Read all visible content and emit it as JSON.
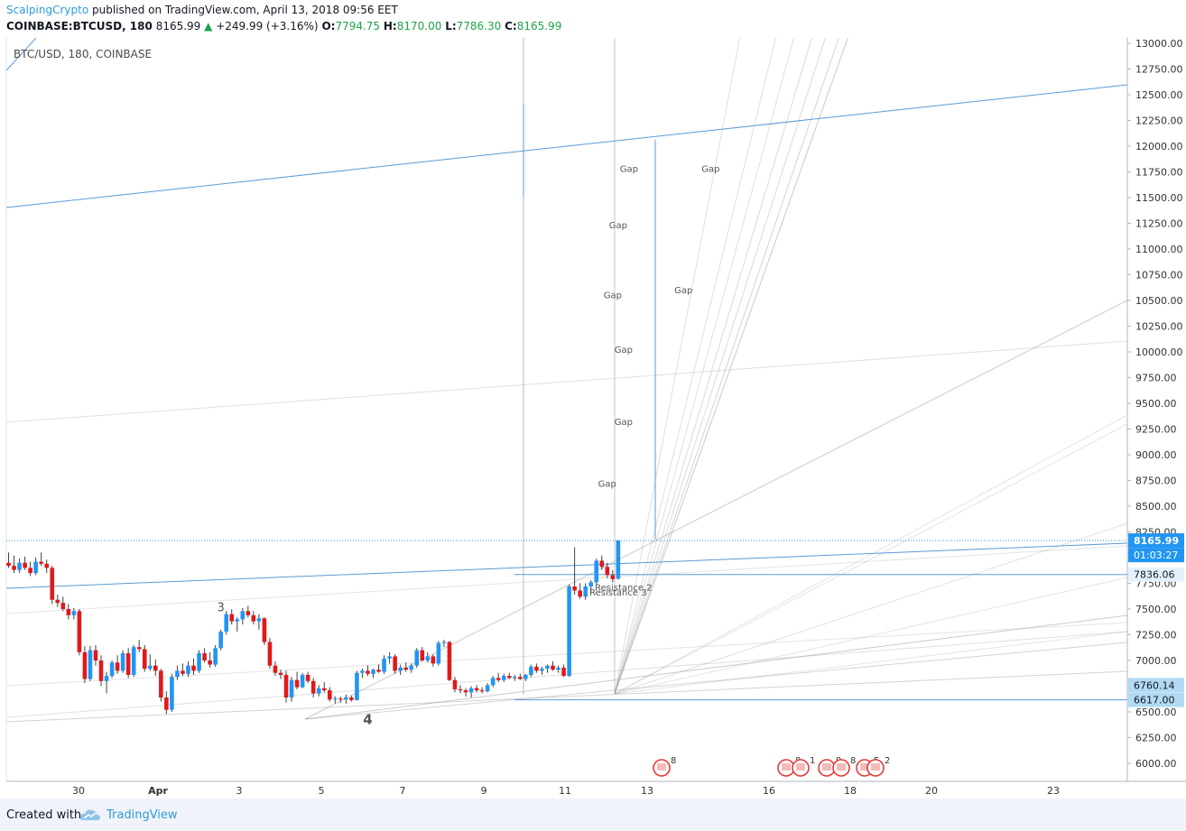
{
  "header": {
    "author": "ScalpingCrypto",
    "published_text": "published on TradingView.com, April 13, 2018 09:56 EET",
    "symbol": "COINBASE:BTCUSD, 180",
    "last": "8165.99",
    "change": "+249.99 (+3.16%)",
    "o_label": "O:",
    "o_value": "7794.75",
    "h_label": "H:",
    "h_value": "8170.00",
    "l_label": "L:",
    "l_value": "7786.30",
    "c_label": "C:",
    "c_value": "8165.99",
    "up_icon": "triangle-up-icon"
  },
  "footer": {
    "created_with": "Created with",
    "brand": "TradingView",
    "logo_icon": "tradingview-cloud-icon"
  },
  "colors": {
    "up": "#2196f3",
    "down": "#e0191b",
    "trendline_blue": "#5b9bd5",
    "fan_gray": "#9e9e9e",
    "last_price_bg": "#2196f3",
    "level_bg": "#b2dbf3"
  },
  "chart_data": {
    "type": "candlestick",
    "title": "BTC/USD, 180, COINBASE",
    "ylim": [
      5880,
      13000
    ],
    "y_ticks": [
      "6000.00",
      "6250.00",
      "6500.00",
      "6750.00",
      "7000.00",
      "7250.00",
      "7500.00",
      "7750.00",
      "8000.00",
      "8250.00",
      "8500.00",
      "8750.00",
      "9000.00",
      "9250.00",
      "9500.00",
      "9750.00",
      "10000.00",
      "10250.00",
      "10500.00",
      "10750.00",
      "11000.00",
      "11250.00",
      "11500.00",
      "11750.00",
      "12000.00",
      "12250.00",
      "12500.00",
      "12750.00",
      "13000.00"
    ],
    "x_ticks": [
      "30",
      "Apr",
      "3",
      "5",
      "7",
      "9",
      "11",
      "13",
      "16",
      "18",
      "20",
      "23"
    ],
    "price_labels": [
      {
        "text": "8165.99",
        "value": 8165.99,
        "kind": "last"
      },
      {
        "text": "01:03:27",
        "value": 8025,
        "kind": "countdown"
      },
      {
        "text": "7836.06",
        "value": 7836.06,
        "kind": "level"
      },
      {
        "text": "6760.14",
        "value": 6760.14,
        "kind": "level"
      },
      {
        "text": "6617.00",
        "value": 6617.0,
        "kind": "level"
      }
    ],
    "horizontal_levels": [
      7836.06,
      6617.0
    ],
    "candles": [
      [
        7950,
        8050,
        7900,
        7920
      ],
      [
        7920,
        8020,
        7850,
        7880
      ],
      [
        7880,
        7990,
        7850,
        7950
      ],
      [
        7950,
        8010,
        7880,
        7900
      ],
      [
        7900,
        7960,
        7820,
        7850
      ],
      [
        7850,
        8000,
        7830,
        7960
      ],
      [
        7960,
        8050,
        7920,
        7940
      ],
      [
        7940,
        7980,
        7850,
        7900
      ],
      [
        7900,
        7920,
        7550,
        7590
      ],
      [
        7590,
        7640,
        7520,
        7560
      ],
      [
        7560,
        7620,
        7480,
        7500
      ],
      [
        7500,
        7550,
        7400,
        7440
      ],
      [
        7440,
        7510,
        7400,
        7480
      ],
      [
        7480,
        7500,
        7050,
        7080
      ],
      [
        7080,
        7140,
        6780,
        6820
      ],
      [
        6820,
        7140,
        6800,
        7100
      ],
      [
        7100,
        7150,
        6950,
        7000
      ],
      [
        7000,
        7050,
        6750,
        6800
      ],
      [
        6800,
        6890,
        6680,
        6850
      ],
      [
        6850,
        7000,
        6830,
        6980
      ],
      [
        6980,
        7050,
        6870,
        6900
      ],
      [
        6900,
        7100,
        6880,
        7070
      ],
      [
        7070,
        7120,
        6830,
        6860
      ],
      [
        6860,
        7150,
        6840,
        7130
      ],
      [
        7130,
        7200,
        7080,
        7110
      ],
      [
        7110,
        7150,
        6890,
        6920
      ],
      [
        6920,
        7060,
        6900,
        6950
      ],
      [
        6950,
        7010,
        6850,
        6900
      ],
      [
        6900,
        6920,
        6600,
        6640
      ],
      [
        6640,
        6700,
        6480,
        6520
      ],
      [
        6520,
        6870,
        6500,
        6840
      ],
      [
        6840,
        6950,
        6810,
        6900
      ],
      [
        6900,
        6970,
        6850,
        6870
      ],
      [
        6870,
        6990,
        6840,
        6950
      ],
      [
        6950,
        7020,
        6860,
        6900
      ],
      [
        6900,
        7100,
        6880,
        7070
      ],
      [
        7070,
        7120,
        6980,
        7000
      ],
      [
        7000,
        7080,
        6930,
        6960
      ],
      [
        6960,
        7150,
        6940,
        7120
      ],
      [
        7120,
        7300,
        7100,
        7280
      ],
      [
        7280,
        7480,
        7250,
        7450
      ],
      [
        7450,
        7500,
        7350,
        7380
      ],
      [
        7380,
        7420,
        7280,
        7400
      ],
      [
        7400,
        7510,
        7350,
        7480
      ],
      [
        7480,
        7530,
        7420,
        7440
      ],
      [
        7440,
        7480,
        7350,
        7380
      ],
      [
        7380,
        7450,
        7300,
        7410
      ],
      [
        7410,
        7420,
        7150,
        7180
      ],
      [
        7180,
        7220,
        6920,
        6950
      ],
      [
        6950,
        6990,
        6850,
        6880
      ],
      [
        6880,
        6910,
        6820,
        6860
      ],
      [
        6860,
        6900,
        6590,
        6640
      ],
      [
        6640,
        6840,
        6600,
        6810
      ],
      [
        6810,
        6890,
        6720,
        6740
      ],
      [
        6740,
        6880,
        6730,
        6860
      ],
      [
        6860,
        6890,
        6780,
        6800
      ],
      [
        6800,
        6830,
        6640,
        6680
      ],
      [
        6680,
        6760,
        6650,
        6730
      ],
      [
        6730,
        6790,
        6690,
        6710
      ],
      [
        6710,
        6740,
        6600,
        6620
      ],
      [
        6620,
        6650,
        6580,
        6630
      ],
      [
        6630,
        6650,
        6590,
        6620
      ],
      [
        6620,
        6670,
        6580,
        6640
      ],
      [
        6640,
        6660,
        6600,
        6615
      ],
      [
        6615,
        6900,
        6610,
        6880
      ],
      [
        6880,
        6920,
        6830,
        6900
      ],
      [
        6900,
        6950,
        6850,
        6870
      ],
      [
        6870,
        6920,
        6830,
        6910
      ],
      [
        6910,
        6960,
        6880,
        6890
      ],
      [
        6890,
        7050,
        6870,
        7020
      ],
      [
        7020,
        7080,
        6970,
        7040
      ],
      [
        7040,
        7060,
        6870,
        6900
      ],
      [
        6900,
        6960,
        6860,
        6930
      ],
      [
        6930,
        6980,
        6890,
        6910
      ],
      [
        6910,
        6970,
        6880,
        6950
      ],
      [
        6950,
        7120,
        6930,
        7100
      ],
      [
        7100,
        7130,
        6990,
        7000
      ],
      [
        7000,
        7080,
        6980,
        7040
      ],
      [
        7040,
        7060,
        6940,
        6970
      ],
      [
        6970,
        7190,
        6950,
        7170
      ],
      [
        7170,
        7200,
        7130,
        7180
      ],
      [
        7180,
        7190,
        6800,
        6810
      ],
      [
        6810,
        6840,
        6690,
        6720
      ],
      [
        6720,
        6760,
        6680,
        6710
      ],
      [
        6710,
        6730,
        6650,
        6690
      ],
      [
        6690,
        6750,
        6640,
        6730
      ],
      [
        6730,
        6760,
        6690,
        6710
      ],
      [
        6710,
        6740,
        6680,
        6700
      ],
      [
        6700,
        6780,
        6690,
        6760
      ],
      [
        6760,
        6850,
        6740,
        6830
      ],
      [
        6830,
        6880,
        6790,
        6810
      ],
      [
        6810,
        6870,
        6790,
        6850
      ],
      [
        6850,
        6880,
        6820,
        6830
      ],
      [
        6830,
        6860,
        6800,
        6840
      ],
      [
        6840,
        6870,
        6810,
        6820
      ],
      [
        6820,
        6870,
        6800,
        6860
      ],
      [
        6860,
        6960,
        6840,
        6940
      ],
      [
        6940,
        6970,
        6880,
        6900
      ],
      [
        6900,
        6940,
        6860,
        6920
      ],
      [
        6920,
        6960,
        6880,
        6950
      ],
      [
        6950,
        6990,
        6900,
        6910
      ],
      [
        6910,
        6950,
        6880,
        6930
      ],
      [
        6930,
        6960,
        6840,
        6850
      ],
      [
        6850,
        7740,
        6840,
        7720
      ],
      [
        7720,
        8100,
        7640,
        7680
      ],
      [
        7680,
        7750,
        7600,
        7620
      ],
      [
        7620,
        7750,
        7590,
        7720
      ],
      [
        7720,
        7780,
        7650,
        7760
      ],
      [
        7760,
        7990,
        7740,
        7970
      ],
      [
        7970,
        8020,
        7880,
        7910
      ],
      [
        7910,
        7950,
        7800,
        7830
      ],
      [
        7830,
        7880,
        7760,
        7790
      ],
      [
        7794.75,
        8170,
        7786.3,
        8165.99
      ]
    ],
    "annotations": [
      {
        "text": "Gap",
        "x_bar": 114,
        "y": 11750
      },
      {
        "text": "Gap",
        "x_bar": 129,
        "y": 11750
      },
      {
        "text": "Gap",
        "x_bar": 112,
        "y": 11200
      },
      {
        "text": "Gap",
        "x_bar": 111,
        "y": 10520
      },
      {
        "text": "Gap",
        "x_bar": 124,
        "y": 10570
      },
      {
        "text": "Gap",
        "x_bar": 113,
        "y": 9990
      },
      {
        "text": "Gap",
        "x_bar": 113,
        "y": 9290
      },
      {
        "text": "Gap",
        "x_bar": 110,
        "y": 8690
      },
      {
        "text": "3",
        "x_bar": 39,
        "y": 7480
      },
      {
        "text": "4",
        "x_bar": 66,
        "y": 6380
      },
      {
        "text": "Resistance 2",
        "x_bar": 113,
        "y": 7680
      },
      {
        "text": "Resistance 3",
        "x_bar": 112,
        "y": 7630
      }
    ],
    "event_markers": [
      "8",
      "8",
      "1",
      "9",
      "8",
      "5",
      "2"
    ]
  }
}
